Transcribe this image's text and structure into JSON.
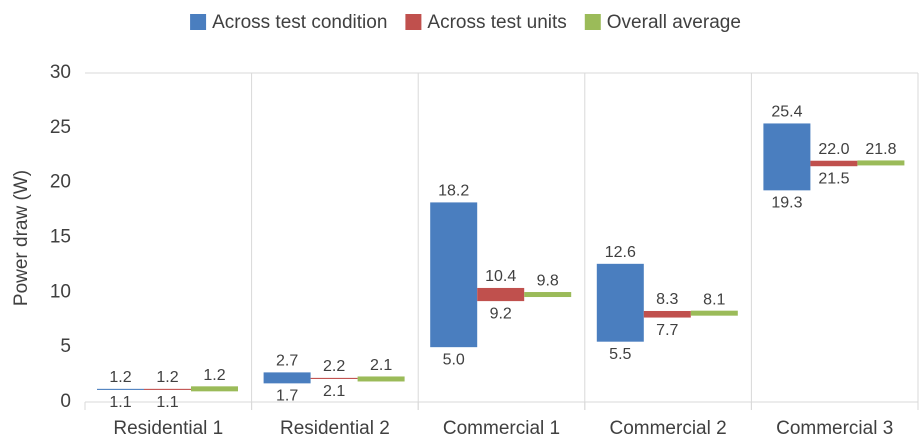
{
  "chart_data": {
    "type": "floating-bar",
    "y_label": "Power draw (W)",
    "categories": [
      "Residential 1",
      "Residential 2",
      "Commercial 1",
      "Commercial 2",
      "Commercial 3"
    ],
    "series": [
      {
        "name": "Across test condition",
        "color": "#4a7ebf",
        "low": [
          1.1,
          1.7,
          5.0,
          5.5,
          19.3
        ],
        "high": [
          1.2,
          2.7,
          18.2,
          12.6,
          25.4
        ],
        "low_labels": [
          "1.1",
          "1.7",
          "5.0",
          "5.5",
          "19.3"
        ],
        "high_labels": [
          "1.2",
          "2.7",
          "18.2",
          "12.6",
          "25.4"
        ]
      },
      {
        "name": "Across test units",
        "color": "#c0504d",
        "low": [
          1.1,
          2.1,
          9.2,
          7.7,
          21.5
        ],
        "high": [
          1.2,
          2.2,
          10.4,
          8.3,
          22.0
        ],
        "low_labels": [
          "1.1",
          "2.1",
          "9.2",
          "7.7",
          "21.5"
        ],
        "high_labels": [
          "1.2",
          "2.2",
          "10.4",
          "8.3",
          "22.0"
        ]
      },
      {
        "name": "Overall average",
        "color": "#9bbb59",
        "values": [
          1.2,
          2.1,
          9.8,
          8.1,
          21.8
        ],
        "value_labels": [
          "1.2",
          "2.1",
          "9.8",
          "8.1",
          "21.8"
        ]
      }
    ],
    "ylim": [
      0,
      30
    ],
    "yticks": [
      0,
      5,
      10,
      15,
      20,
      25,
      30
    ]
  }
}
